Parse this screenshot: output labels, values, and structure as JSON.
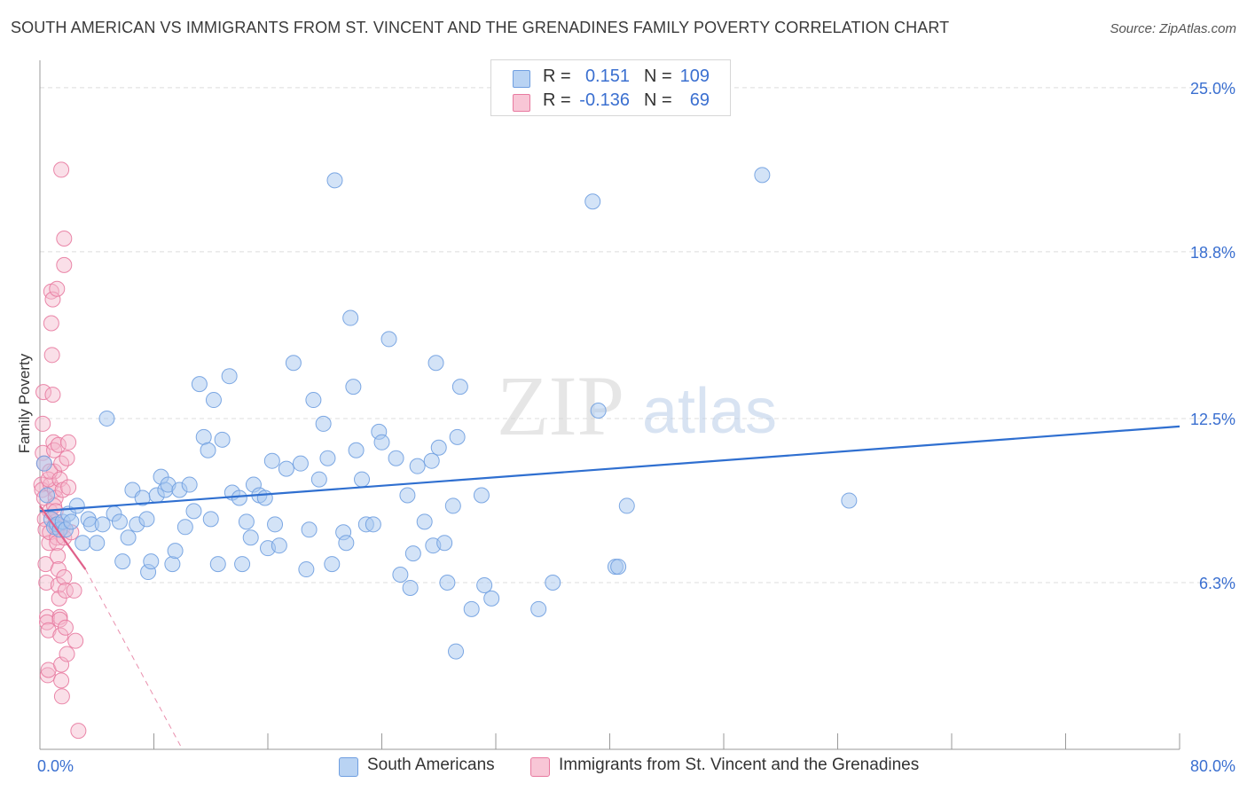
{
  "title": "SOUTH AMERICAN VS IMMIGRANTS FROM ST. VINCENT AND THE GRENADINES FAMILY POVERTY CORRELATION CHART",
  "source": "Source: ZipAtlas.com",
  "watermark": {
    "zip": "ZIP",
    "atlas": "atlas"
  },
  "colors": {
    "blue": "#a8c8f0",
    "blue_edge": "#6f9ee0",
    "blue_line": "#2f6fd0",
    "pink": "#f5b8cc",
    "pink_edge": "#e87aa0",
    "pink_line": "#e0608a",
    "axis_text": "#3a6fd0",
    "grid": "#dcdcdc"
  },
  "stats": {
    "blue": {
      "r_label": "R =",
      "r_value": "0.151",
      "n_label": "N =",
      "n_value": "109"
    },
    "pink": {
      "r_label": "R =",
      "r_value": "-0.136",
      "n_label": "N =",
      "n_value": "69"
    }
  },
  "legend": {
    "blue": "South Americans",
    "pink": "Immigrants from St. Vincent and the Grenadines"
  },
  "chart_data": {
    "type": "scatter",
    "title": "SOUTH AMERICAN VS IMMIGRANTS FROM ST. VINCENT AND THE GRENADINES FAMILY POVERTY CORRELATION CHART",
    "xlabel": "",
    "ylabel": "Family Poverty",
    "xlim": [
      0,
      80
    ],
    "ylim": [
      0,
      25.7
    ],
    "x_ticks": [
      0,
      8,
      16,
      24,
      32,
      40,
      48,
      56,
      64,
      72,
      80
    ],
    "x_tick_labels": [
      {
        "value": 0,
        "label": "0.0%"
      },
      {
        "value": 80,
        "label": "80.0%"
      }
    ],
    "y_ticks": [
      {
        "value": 6.3,
        "label": "6.3%"
      },
      {
        "value": 12.5,
        "label": "12.5%"
      },
      {
        "value": 18.8,
        "label": "18.8%"
      },
      {
        "value": 25.0,
        "label": "25.0%"
      }
    ],
    "grid": true,
    "legend_position": "bottom",
    "series": [
      {
        "name": "South Americans",
        "color": "#a8c8f0",
        "trend": {
          "x": [
            0,
            80
          ],
          "y": [
            9.0,
            12.2
          ]
        },
        "points": [
          [
            0.3,
            10.8
          ],
          [
            0.5,
            9.6
          ],
          [
            0.8,
            8.7
          ],
          [
            1.0,
            8.4
          ],
          [
            1.2,
            8.5
          ],
          [
            1.4,
            8.3
          ],
          [
            1.6,
            8.6
          ],
          [
            1.8,
            8.3
          ],
          [
            2.0,
            8.9
          ],
          [
            2.2,
            8.6
          ],
          [
            2.6,
            9.2
          ],
          [
            3.0,
            7.8
          ],
          [
            3.4,
            8.7
          ],
          [
            3.6,
            8.5
          ],
          [
            4.0,
            7.8
          ],
          [
            4.4,
            8.5
          ],
          [
            4.7,
            12.5
          ],
          [
            5.2,
            8.9
          ],
          [
            5.6,
            8.6
          ],
          [
            5.8,
            7.1
          ],
          [
            6.2,
            8.0
          ],
          [
            6.5,
            9.8
          ],
          [
            6.8,
            8.5
          ],
          [
            7.2,
            9.5
          ],
          [
            7.5,
            8.7
          ],
          [
            7.6,
            6.7
          ],
          [
            7.8,
            7.1
          ],
          [
            8.2,
            9.6
          ],
          [
            8.5,
            10.3
          ],
          [
            8.8,
            9.8
          ],
          [
            9.0,
            10.0
          ],
          [
            9.3,
            7.0
          ],
          [
            9.5,
            7.5
          ],
          [
            9.8,
            9.8
          ],
          [
            10.2,
            8.4
          ],
          [
            10.5,
            10.0
          ],
          [
            10.8,
            9.0
          ],
          [
            11.2,
            13.8
          ],
          [
            11.5,
            11.8
          ],
          [
            11.8,
            11.3
          ],
          [
            12.0,
            8.7
          ],
          [
            12.5,
            7.0
          ],
          [
            12.2,
            13.2
          ],
          [
            12.8,
            11.7
          ],
          [
            13.3,
            14.1
          ],
          [
            13.5,
            9.7
          ],
          [
            14.0,
            9.5
          ],
          [
            14.2,
            7.0
          ],
          [
            14.5,
            8.6
          ],
          [
            14.8,
            8.0
          ],
          [
            15.0,
            10.0
          ],
          [
            15.4,
            9.6
          ],
          [
            15.8,
            9.5
          ],
          [
            16.0,
            7.6
          ],
          [
            16.3,
            10.9
          ],
          [
            16.5,
            8.5
          ],
          [
            16.8,
            7.7
          ],
          [
            17.3,
            10.6
          ],
          [
            17.8,
            14.6
          ],
          [
            18.3,
            10.8
          ],
          [
            18.7,
            6.8
          ],
          [
            18.9,
            8.3
          ],
          [
            19.2,
            13.2
          ],
          [
            19.6,
            10.2
          ],
          [
            19.9,
            12.3
          ],
          [
            20.2,
            11.0
          ],
          [
            20.5,
            7.0
          ],
          [
            20.7,
            21.5
          ],
          [
            21.3,
            8.2
          ],
          [
            21.5,
            7.8
          ],
          [
            21.8,
            16.3
          ],
          [
            22.0,
            13.7
          ],
          [
            22.2,
            11.3
          ],
          [
            22.6,
            10.2
          ],
          [
            22.9,
            8.5
          ],
          [
            23.4,
            8.5
          ],
          [
            23.8,
            12.0
          ],
          [
            24.0,
            11.6
          ],
          [
            24.5,
            15.5
          ],
          [
            25.0,
            11.0
          ],
          [
            25.3,
            6.6
          ],
          [
            25.8,
            9.6
          ],
          [
            26.0,
            6.1
          ],
          [
            26.2,
            7.4
          ],
          [
            26.5,
            10.7
          ],
          [
            27.0,
            8.6
          ],
          [
            27.5,
            10.9
          ],
          [
            27.6,
            7.7
          ],
          [
            27.8,
            14.6
          ],
          [
            28.0,
            11.4
          ],
          [
            28.4,
            7.8
          ],
          [
            28.6,
            6.3
          ],
          [
            29.0,
            9.2
          ],
          [
            29.2,
            3.7
          ],
          [
            29.3,
            11.8
          ],
          [
            29.5,
            13.7
          ],
          [
            30.3,
            5.3
          ],
          [
            31.0,
            9.6
          ],
          [
            31.2,
            6.2
          ],
          [
            31.7,
            5.7
          ],
          [
            35.0,
            5.3
          ],
          [
            36.0,
            6.3
          ],
          [
            38.8,
            20.7
          ],
          [
            39.2,
            12.8
          ],
          [
            40.4,
            6.9
          ],
          [
            40.6,
            6.9
          ],
          [
            41.2,
            9.2
          ],
          [
            56.8,
            9.4
          ],
          [
            50.7,
            21.7
          ]
        ]
      },
      {
        "name": "Immigrants from St. Vincent and the Grenadines",
        "color": "#f5b8cc",
        "trend": {
          "x": [
            0,
            3.2
          ],
          "y": [
            9.2,
            6.8
          ],
          "dashed_to": {
            "x": 10.0,
            "y": 0.0
          }
        },
        "points": [
          [
            0.1,
            10.0
          ],
          [
            0.15,
            9.8
          ],
          [
            0.2,
            11.2
          ],
          [
            0.2,
            12.3
          ],
          [
            0.25,
            13.5
          ],
          [
            0.3,
            10.8
          ],
          [
            0.3,
            9.5
          ],
          [
            0.35,
            8.7
          ],
          [
            0.4,
            8.3
          ],
          [
            0.4,
            7.0
          ],
          [
            0.45,
            6.3
          ],
          [
            0.5,
            5.0
          ],
          [
            0.5,
            4.8
          ],
          [
            0.55,
            2.8
          ],
          [
            0.6,
            3.0
          ],
          [
            0.6,
            4.5
          ],
          [
            0.65,
            7.8
          ],
          [
            0.7,
            8.2
          ],
          [
            0.7,
            9.0
          ],
          [
            0.75,
            10.0
          ],
          [
            0.8,
            16.1
          ],
          [
            0.8,
            17.3
          ],
          [
            0.85,
            14.9
          ],
          [
            0.9,
            17.0
          ],
          [
            0.9,
            13.4
          ],
          [
            0.95,
            11.6
          ],
          [
            1.0,
            11.3
          ],
          [
            1.0,
            10.5
          ],
          [
            1.05,
            9.8
          ],
          [
            1.1,
            9.5
          ],
          [
            1.1,
            8.6
          ],
          [
            1.15,
            8.4
          ],
          [
            1.2,
            8.0
          ],
          [
            1.2,
            7.8
          ],
          [
            1.25,
            7.3
          ],
          [
            1.3,
            6.8
          ],
          [
            1.3,
            6.2
          ],
          [
            1.35,
            5.7
          ],
          [
            1.4,
            5.0
          ],
          [
            1.4,
            4.9
          ],
          [
            1.45,
            4.3
          ],
          [
            1.5,
            3.2
          ],
          [
            1.5,
            2.6
          ],
          [
            1.55,
            2.0
          ],
          [
            0.6,
            10.2
          ],
          [
            0.7,
            10.5
          ],
          [
            1.0,
            9.2
          ],
          [
            1.1,
            9.0
          ],
          [
            1.2,
            17.4
          ],
          [
            1.3,
            11.5
          ],
          [
            1.4,
            10.2
          ],
          [
            1.5,
            10.8
          ],
          [
            1.6,
            9.8
          ],
          [
            1.6,
            8.4
          ],
          [
            1.7,
            8.0
          ],
          [
            1.7,
            6.5
          ],
          [
            1.8,
            6.0
          ],
          [
            1.8,
            4.6
          ],
          [
            1.9,
            3.6
          ],
          [
            1.5,
            21.9
          ],
          [
            1.7,
            19.3
          ],
          [
            1.7,
            18.3
          ],
          [
            2.0,
            11.6
          ],
          [
            1.9,
            11.0
          ],
          [
            2.0,
            9.9
          ],
          [
            2.2,
            8.2
          ],
          [
            2.4,
            6.0
          ],
          [
            2.5,
            4.1
          ],
          [
            2.7,
            0.7
          ]
        ]
      }
    ]
  }
}
